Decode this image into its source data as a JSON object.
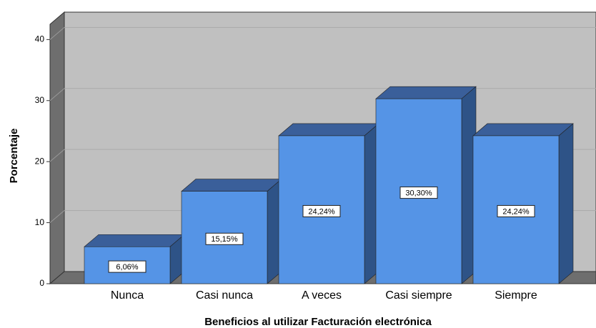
{
  "chart_data": {
    "type": "bar3d",
    "x_label": "Beneficios al utilizar Facturación electrónica",
    "y_label": "Porcentaje",
    "categories": [
      "Nunca",
      "Casi nunca",
      "A veces",
      "Casi siempre",
      "Siempre"
    ],
    "values": [
      6.06,
      15.15,
      24.24,
      30.3,
      24.24
    ],
    "value_labels": [
      "6,06%",
      "15,15%",
      "24,24%",
      "30,30%",
      "24,24%"
    ],
    "color": "#5594e6",
    "ylim": [
      0,
      42.5
    ],
    "yticks": [
      0,
      10,
      20,
      30,
      40
    ],
    "grid": true
  }
}
